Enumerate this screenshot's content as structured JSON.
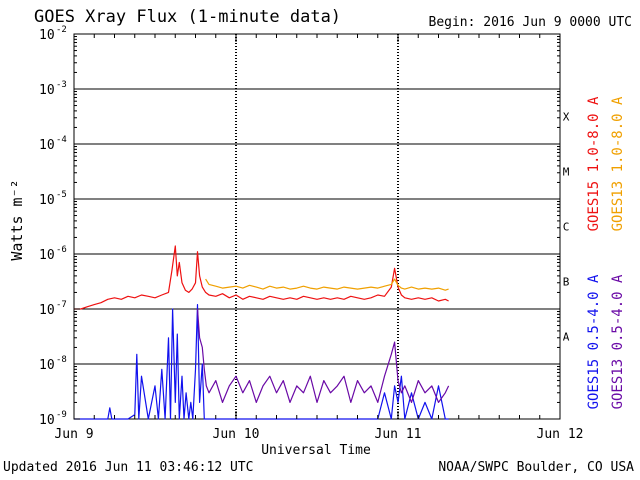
{
  "header": {
    "title": "GOES Xray Flux (1-minute data)",
    "begin": "Begin:  2016 Jun 9 0000 UTC"
  },
  "footer": {
    "updated": "Updated 2016 Jun 11 03:46:12 UTC",
    "credit": "NOAA/SWPC Boulder, CO USA"
  },
  "colors": {
    "goes15_long": "#ee1111",
    "goes13_long": "#f0a000",
    "goes15_short": "#1111ee",
    "goes13_short": "#6a0aa6"
  },
  "chart_data": {
    "type": "line",
    "title": "GOES Xray Flux (1-minute data)",
    "xlabel": "Universal Time",
    "ylabel": "Watts m⁻²",
    "yscale": "log",
    "ylim": [
      1e-09,
      0.01
    ],
    "xlim": [
      0,
      72
    ],
    "x_unit": "hours since 2016 Jun 9 0000 UTC",
    "x_ticks": [
      {
        "hour": 0,
        "label": "Jun 9"
      },
      {
        "hour": 24,
        "label": "Jun 10"
      },
      {
        "hour": 48,
        "label": "Jun 11"
      },
      {
        "hour": 72,
        "label": "Jun 12"
      }
    ],
    "y_ticks": [
      {
        "exp": -9,
        "label": "10",
        "sup": "-9"
      },
      {
        "exp": -8,
        "label": "10",
        "sup": "-8"
      },
      {
        "exp": -7,
        "label": "10",
        "sup": "-7"
      },
      {
        "exp": -6,
        "label": "10",
        "sup": "-6"
      },
      {
        "exp": -5,
        "label": "10",
        "sup": "-5"
      },
      {
        "exp": -4,
        "label": "10",
        "sup": "-4"
      },
      {
        "exp": -3,
        "label": "10",
        "sup": "-3"
      },
      {
        "exp": -2,
        "label": "10",
        "sup": "-2"
      }
    ],
    "flare_classes": [
      {
        "label": "A",
        "exp": -8
      },
      {
        "label": "B",
        "exp": -7
      },
      {
        "label": "C",
        "exp": -6
      },
      {
        "label": "M",
        "exp": -5
      },
      {
        "label": "X",
        "exp": -4
      }
    ],
    "legend": [
      {
        "name": "GOES15 1.0-8.0 A",
        "color_key": "goes15_long"
      },
      {
        "name": "GOES13 1.0-8.0 A",
        "color_key": "goes13_long"
      },
      {
        "name": "GOES15 0.5-4.0 A",
        "color_key": "goes15_short"
      },
      {
        "name": "GOES13 0.5-4.0 A",
        "color_key": "goes13_short"
      }
    ],
    "series": [
      {
        "name": "GOES15 1.0-8.0 A",
        "color_key": "goes15_long",
        "hours": [
          0,
          1,
          2,
          3,
          4,
          5,
          6,
          7,
          8,
          9,
          10,
          11,
          12,
          13,
          14,
          14.5,
          15,
          15.3,
          15.6,
          16,
          16.5,
          17,
          17.5,
          18,
          18.3,
          18.6,
          19,
          19.5,
          20,
          21,
          22,
          23,
          24,
          25,
          26,
          27,
          28,
          29,
          30,
          31,
          32,
          33,
          34,
          35,
          36,
          37,
          38,
          39,
          40,
          41,
          42,
          43,
          44,
          45,
          46,
          47,
          47.5,
          48,
          48.5,
          49,
          50,
          51,
          52,
          53,
          54,
          55,
          55.5
        ],
        "values": [
          1e-07,
          1e-07,
          1.1e-07,
          1.2e-07,
          1.3e-07,
          1.5e-07,
          1.6e-07,
          1.5e-07,
          1.7e-07,
          1.6e-07,
          1.8e-07,
          1.7e-07,
          1.6e-07,
          1.8e-07,
          2e-07,
          5e-07,
          1.4e-06,
          4e-07,
          7e-07,
          3e-07,
          2.2e-07,
          2e-07,
          2.3e-07,
          3e-07,
          1.1e-06,
          4e-07,
          2.5e-07,
          2e-07,
          1.8e-07,
          1.7e-07,
          1.9e-07,
          1.6e-07,
          1.8e-07,
          1.5e-07,
          1.7e-07,
          1.6e-07,
          1.5e-07,
          1.7e-07,
          1.6e-07,
          1.5e-07,
          1.6e-07,
          1.5e-07,
          1.7e-07,
          1.6e-07,
          1.5e-07,
          1.6e-07,
          1.5e-07,
          1.6e-07,
          1.5e-07,
          1.7e-07,
          1.6e-07,
          1.5e-07,
          1.6e-07,
          1.8e-07,
          1.7e-07,
          2.5e-07,
          5.5e-07,
          2.5e-07,
          1.8e-07,
          1.6e-07,
          1.5e-07,
          1.6e-07,
          1.5e-07,
          1.6e-07,
          1.4e-07,
          1.5e-07,
          1.4e-07
        ]
      },
      {
        "name": "GOES13 1.0-8.0 A",
        "color_key": "goes13_long",
        "hours": [
          19.5,
          20,
          21,
          22,
          23,
          24,
          25,
          26,
          27,
          28,
          29,
          30,
          31,
          32,
          33,
          34,
          35,
          36,
          37,
          38,
          39,
          40,
          41,
          42,
          43,
          44,
          45,
          46,
          47,
          47.5,
          48,
          48.5,
          49,
          50,
          51,
          52,
          53,
          54,
          55,
          55.5
        ],
        "values": [
          3.5e-07,
          2.8e-07,
          2.6e-07,
          2.4e-07,
          2.5e-07,
          2.6e-07,
          2.4e-07,
          2.7e-07,
          2.5e-07,
          2.3e-07,
          2.6e-07,
          2.4e-07,
          2.5e-07,
          2.3e-07,
          2.4e-07,
          2.6e-07,
          2.4e-07,
          2.3e-07,
          2.5e-07,
          2.4e-07,
          2.3e-07,
          2.5e-07,
          2.4e-07,
          2.3e-07,
          2.4e-07,
          2.5e-07,
          2.4e-07,
          2.6e-07,
          2.8e-07,
          3.5e-07,
          2.7e-07,
          2.4e-07,
          2.3e-07,
          2.5e-07,
          2.3e-07,
          2.4e-07,
          2.3e-07,
          2.4e-07,
          2.2e-07,
          2.3e-07
        ]
      },
      {
        "name": "GOES15 0.5-4.0 A",
        "color_key": "goes15_short",
        "hours": [
          0,
          5,
          5.3,
          5.6,
          8,
          9,
          9.3,
          9.6,
          10,
          11,
          12,
          12.5,
          13,
          13.5,
          14,
          14.3,
          14.6,
          15,
          15.3,
          15.6,
          16,
          16.3,
          16.6,
          17,
          17.3,
          17.6,
          18,
          18.3,
          18.6,
          19,
          19.3,
          19.6,
          20,
          22,
          24,
          26,
          28,
          30,
          32,
          34,
          36,
          38,
          40,
          42,
          44,
          45,
          46,
          47,
          47.5,
          48,
          48.5,
          49,
          50,
          51,
          52,
          53,
          54,
          55,
          55.5
        ],
        "values": [
          1e-09,
          1e-09,
          1.6e-09,
          1e-09,
          1e-09,
          1.2e-09,
          1.5e-08,
          1e-09,
          6e-09,
          1e-09,
          4e-09,
          1e-09,
          8e-09,
          1e-09,
          3e-08,
          1e-09,
          1e-07,
          2e-09,
          3.5e-08,
          1e-09,
          6e-09,
          1e-09,
          3e-09,
          1e-09,
          2e-09,
          1e-09,
          8e-09,
          1.2e-07,
          2e-09,
          1e-08,
          1e-09,
          1e-09,
          1e-09,
          1e-09,
          1e-09,
          1e-09,
          1e-09,
          1e-09,
          1e-09,
          1e-09,
          1e-09,
          1e-09,
          1e-09,
          1e-09,
          1e-09,
          1e-09,
          3e-09,
          1e-09,
          4e-09,
          2e-09,
          6e-09,
          1e-09,
          3e-09,
          1e-09,
          2e-09,
          1e-09,
          4e-09,
          1e-09,
          1e-09
        ]
      },
      {
        "name": "GOES13 0.5-4.0 A",
        "color_key": "goes13_short",
        "hours": [
          18.3,
          18.6,
          19,
          19.3,
          19.6,
          20,
          21,
          22,
          23,
          24,
          25,
          26,
          27,
          28,
          29,
          30,
          31,
          32,
          33,
          34,
          35,
          36,
          37,
          38,
          39,
          40,
          41,
          42,
          43,
          44,
          45,
          46,
          47,
          47.5,
          48,
          48.5,
          49,
          50,
          51,
          52,
          53,
          54,
          55,
          55.5
        ],
        "values": [
          1e-07,
          3e-08,
          2e-08,
          8e-09,
          4e-09,
          3e-09,
          5e-09,
          2e-09,
          4e-09,
          6e-09,
          3e-09,
          5e-09,
          2e-09,
          4e-09,
          6e-09,
          3e-09,
          5e-09,
          2e-09,
          4e-09,
          3e-09,
          6e-09,
          2e-09,
          5e-09,
          3e-09,
          4e-09,
          6e-09,
          2e-09,
          5e-09,
          3e-09,
          4e-09,
          2e-09,
          6e-09,
          1.5e-08,
          2.5e-08,
          5e-09,
          3e-09,
          4e-09,
          2e-09,
          5e-09,
          3e-09,
          4e-09,
          2e-09,
          3e-09,
          4e-09
        ]
      }
    ]
  }
}
